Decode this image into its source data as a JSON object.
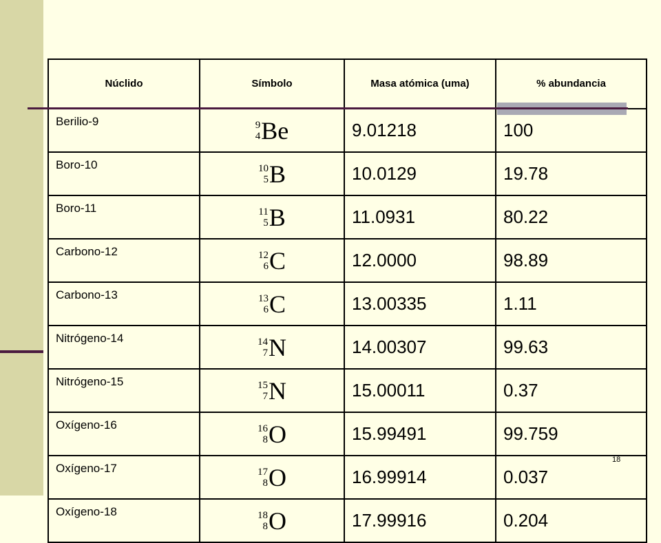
{
  "table": {
    "header": [
      "Núclido",
      "Símbolo",
      "Masa atómica (uma)",
      "% abundancia"
    ],
    "rows": [
      [
        "Berilio-9",
        {
          "mass": "9",
          "z": "4",
          "el": "Be"
        },
        "9.01218",
        "100"
      ],
      [
        "Boro-10",
        {
          "mass": "10",
          "z": "5",
          "el": "B"
        },
        "10.0129",
        "19.78"
      ],
      [
        "Boro-11",
        {
          "mass": "11",
          "z": "5",
          "el": "B"
        },
        "11.0931",
        "80.22"
      ],
      [
        "Carbono-12",
        {
          "mass": "12",
          "z": "6",
          "el": "C"
        },
        "12.0000",
        "98.89"
      ],
      [
        "Carbono-13",
        {
          "mass": "13",
          "z": "6",
          "el": "C"
        },
        "13.00335",
        "1.11"
      ],
      [
        "Nitrógeno-14",
        {
          "mass": "14",
          "z": "7",
          "el": "N"
        },
        "14.00307",
        "99.63"
      ],
      [
        "Nitrógeno-15",
        {
          "mass": "15",
          "z": "7",
          "el": "N"
        },
        "15.00011",
        "0.37"
      ],
      [
        "Oxígeno-16",
        {
          "mass": "16",
          "z": "8",
          "el": "O"
        },
        "15.99491",
        "99.759"
      ],
      [
        "Oxígeno-17",
        {
          "mass": "17",
          "z": "8",
          "el": "O"
        },
        "16.99914",
        "0.037"
      ],
      [
        "Oxígeno-18",
        {
          "mass": "18",
          "z": "8",
          "el": "O"
        },
        "17.99916",
        "0.204"
      ]
    ]
  },
  "footer": {
    "page_number": "18"
  }
}
